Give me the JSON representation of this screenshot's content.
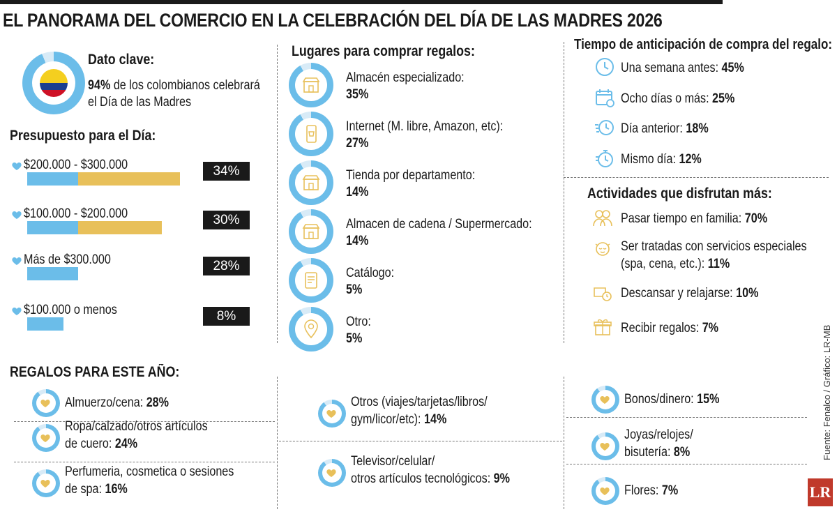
{
  "title": "EL PANORAMA DEL COMERCIO EN LA CELEBRACIÓN DEL DÍA DE LAS MADRES 2026",
  "dato_clave": {
    "heading": "Dato clave:",
    "pct": "94%",
    "text_1": " de los colombianos celebrará",
    "text_2": "el Día de las Madres",
    "value": 0.94
  },
  "colors": {
    "blue": "#6bbde9",
    "gold": "#e8c05a",
    "light": "#d8ebf7",
    "black": "#1a1a1a"
  },
  "chart_data": [
    {
      "type": "bar",
      "title": "Presupuesto para el Día:",
      "categories": [
        "$200.000 - $300.000",
        "$100.000 - $200.000",
        "Más de $300.000",
        "$100.000 o menos"
      ],
      "values": [
        34,
        30,
        28,
        8
      ],
      "labels": [
        "34%",
        "30%",
        "28%",
        "8%"
      ]
    },
    {
      "type": "pie",
      "title": "Lugares para comprar regalos:",
      "categories": [
        "Almacén especializado:",
        "Internet (M. libre, Amazon, etc):",
        "Tienda por departamento:",
        "Almacen de cadena / Supermercado:",
        "Catálogo:",
        "Otro:"
      ],
      "values": [
        35,
        27,
        14,
        14,
        5,
        5
      ],
      "labels": [
        "35%",
        "27%",
        "14%",
        "14%",
        "5%",
        "5%"
      ]
    },
    {
      "type": "table",
      "title": "Tiempo de anticipación de compra del regalo:",
      "categories": [
        "Una semana antes:",
        "Ocho días o más:",
        "Día anterior:",
        "Mismo día:"
      ],
      "values": [
        45,
        25,
        18,
        12
      ],
      "labels": [
        "45%",
        "25%",
        "18%",
        "12%"
      ]
    },
    {
      "type": "table",
      "title": "Actividades que disfrutan más:",
      "categories": [
        "Pasar tiempo en familia:",
        "Ser tratadas con servicios especiales (spa, cena, etc.):",
        "Descansar y relajarse:",
        "Recibir regalos:"
      ],
      "values": [
        70,
        11,
        10,
        7
      ],
      "labels": [
        "70%",
        "11%",
        "10%",
        "7%"
      ]
    },
    {
      "type": "pie",
      "title": "REGALOS PARA ESTE AÑO:",
      "categories": [
        "Almuerzo/cena:",
        "Ropa/calzado/otros artículos de cuero:",
        "Perfumeria, cosmetica o sesiones de spa:",
        "Otros (viajes/tarjetas/libros/gym/licor/etc):",
        "Televisor/celular/otros artículos tecnológicos:",
        "Bonos/dinero:",
        "Joyas/relojes/bisutería:",
        "Flores:"
      ],
      "values": [
        28,
        24,
        16,
        14,
        9,
        15,
        8,
        7
      ],
      "labels": [
        "28%",
        "24%",
        "16%",
        "14%",
        "9%",
        "15%",
        "8%",
        "7%"
      ]
    }
  ],
  "budget": {
    "heading": "Presupuesto para el Día:",
    "rows": [
      {
        "label": "$200.000 - $300.000",
        "pct": "34%",
        "value": 34,
        "icon": "heart-icon"
      },
      {
        "label": "$100.000 - $200.000",
        "pct": "30%",
        "value": 30,
        "icon": "heart-icon"
      },
      {
        "label": "Más de $300.000",
        "pct": "28%",
        "value": 28,
        "icon": "heart-icon"
      },
      {
        "label": "$100.000 o menos",
        "pct": "8%",
        "value": 8,
        "icon": "heart-icon"
      }
    ]
  },
  "places": {
    "heading": "Lugares para comprar regalos:",
    "items": [
      {
        "label": "Almacén especializado:",
        "pct": "35%",
        "value": 35,
        "icon": "store-icon"
      },
      {
        "label": "Internet (M. libre, Amazon, etc):",
        "pct": "27%",
        "value": 27,
        "icon": "phone-shop-icon"
      },
      {
        "label": "Tienda por departamento:",
        "pct": "14%",
        "value": 14,
        "icon": "store-icon"
      },
      {
        "label": "Almacen de cadena / Supermercado:",
        "pct": "14%",
        "value": 14,
        "icon": "store-icon"
      },
      {
        "label": "Catálogo:",
        "pct": "5%",
        "value": 5,
        "icon": "catalog-icon"
      },
      {
        "label": "Otro:",
        "pct": "5%",
        "value": 5,
        "icon": "location-pin-icon"
      }
    ]
  },
  "timing": {
    "heading": "Tiempo de anticipación de compra del regalo:",
    "items": [
      {
        "label": "Una semana antes:",
        "pct": "45%",
        "icon": "clock-icon"
      },
      {
        "label": "Ocho días o más:",
        "pct": "25%",
        "icon": "calendar-icon"
      },
      {
        "label": "Día anterior:",
        "pct": "18%",
        "icon": "fast-clock-icon"
      },
      {
        "label": "Mismo día:",
        "pct": "12%",
        "icon": "stopwatch-icon"
      }
    ]
  },
  "activities": {
    "heading": "Actividades que disfrutan más:",
    "items": [
      {
        "label": "Pasar tiempo en familia:",
        "pct": "70%",
        "icon": "family-icon"
      },
      {
        "label": "Ser tratadas con servicios especiales",
        "label2": "(spa, cena, etc.):",
        "pct": "11%",
        "icon": "spa-icon"
      },
      {
        "label": "Descansar y relajarse:",
        "pct": "10%",
        "icon": "rest-icon"
      },
      {
        "label": "Recibir regalos:",
        "pct": "7%",
        "icon": "gift-icon"
      }
    ]
  },
  "gifts": {
    "heading": "REGALOS PARA ESTE AÑO:",
    "items": [
      {
        "label": "Almuerzo/cena:",
        "label2": "",
        "pct": "28%",
        "value": 28
      },
      {
        "label": "Ropa/calzado/otros artículos",
        "label2": "de cuero:",
        "pct": "24%",
        "value": 24
      },
      {
        "label": "Perfumeria, cosmetica o sesiones",
        "label2": "de spa:",
        "pct": "16%",
        "value": 16
      },
      {
        "label": "Otros (viajes/tarjetas/libros/",
        "label2": "gym/licor/etc):",
        "pct": "14%",
        "value": 14
      },
      {
        "label": "Televisor/celular/",
        "label2": "otros artículos tecnológicos:",
        "pct": "9%",
        "value": 9
      },
      {
        "label": "Bonos/dinero:",
        "label2": "",
        "pct": "15%",
        "value": 15
      },
      {
        "label": "Joyas/relojes/",
        "label2": "bisutería:",
        "pct": "8%",
        "value": 8
      },
      {
        "label": "Flores:",
        "label2": "",
        "pct": "7%",
        "value": 7
      }
    ]
  },
  "source": "Fuente: Fenalco / Gráfico: LR-MB",
  "logo": "LR"
}
